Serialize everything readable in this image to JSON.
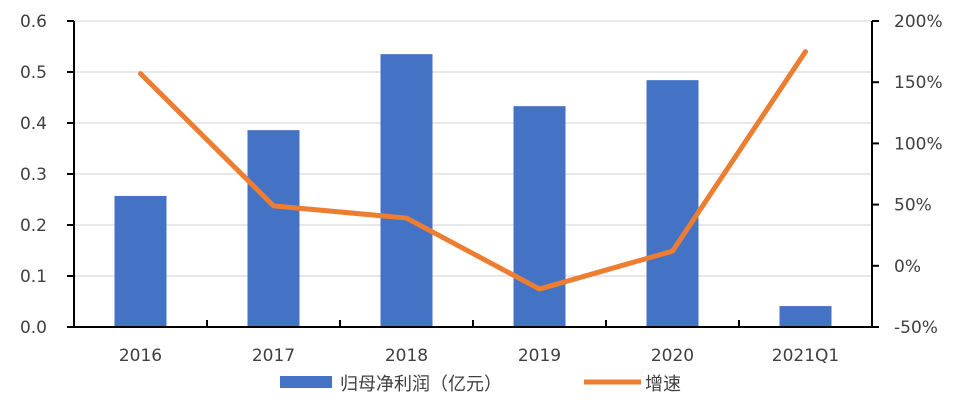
{
  "chart_data": {
    "type": "bar+line",
    "title": "",
    "categories": [
      "2016",
      "2017",
      "2018",
      "2019",
      "2020",
      "2021Q1"
    ],
    "series": [
      {
        "name": "归母净利润（亿元）",
        "type": "bar",
        "axis": "left",
        "color": "#4472C4",
        "values": [
          0.257,
          0.386,
          0.535,
          0.433,
          0.484,
          0.041
        ]
      },
      {
        "name": "增速",
        "type": "line",
        "axis": "right",
        "color": "#ED7D31",
        "unit": "%",
        "values": [
          157,
          49,
          39,
          -19,
          12,
          175
        ]
      }
    ],
    "left_axis": {
      "ylim": [
        0,
        0.6
      ],
      "ticks": [
        "0.0",
        "0.1",
        "0.2",
        "0.3",
        "0.4",
        "0.5",
        "0.6"
      ]
    },
    "right_axis": {
      "ylim": [
        -50,
        200
      ],
      "ticks": [
        "-50%",
        "0%",
        "50%",
        "100%",
        "150%",
        "200%"
      ]
    },
    "xlabel": "",
    "ylabel": "",
    "grid": true,
    "legend_position": "bottom"
  },
  "legend": {
    "bar_label": "归母净利润（亿元）",
    "line_label": "增速"
  }
}
